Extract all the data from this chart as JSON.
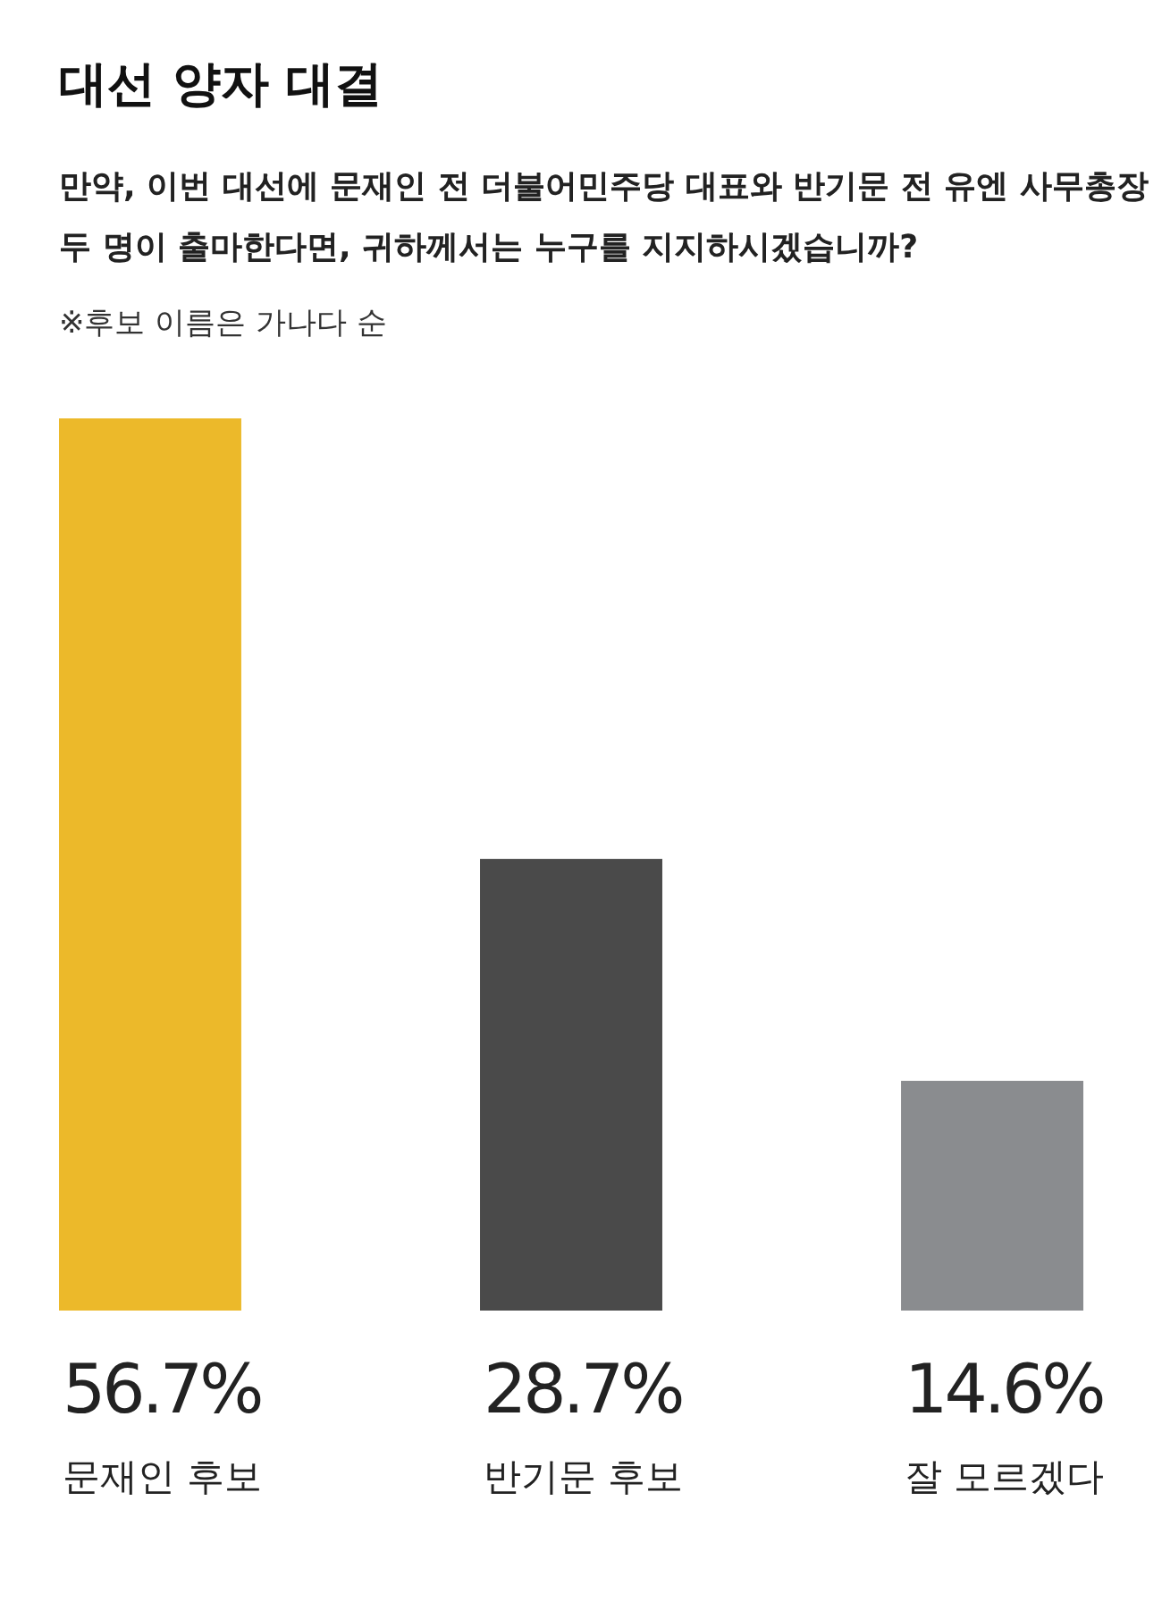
{
  "chart_data": {
    "type": "bar",
    "title": "대선 양자 대결",
    "subtitle": "만약, 이번 대선에 문재인 전 더불어민주당 대표와 반기문 전 유엔 사무총장\n두 명이 출마한다면, 귀하께서는 누구를 지지하시겠습니까?",
    "annotations": [
      "※후보 이름은 가나다 순"
    ],
    "categories": [
      "문재인 후보",
      "반기문 후보",
      "잘 모르겠다"
    ],
    "values": [
      56.7,
      28.7,
      14.6
    ],
    "colors": [
      "#ecb92a",
      "#4a4a4a",
      "#8a8c8f"
    ],
    "value_labels": [
      "56.7%",
      "28.7%",
      "14.6%"
    ]
  }
}
